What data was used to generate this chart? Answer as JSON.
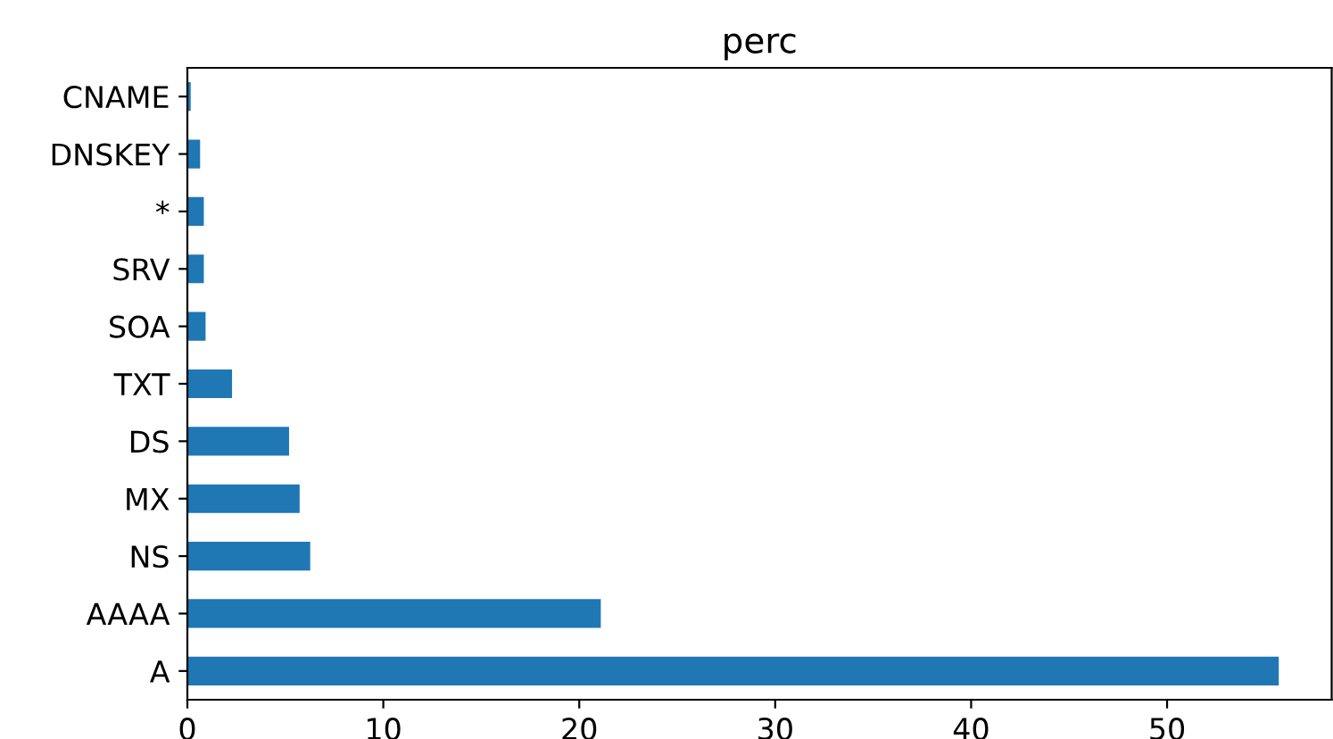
{
  "chart_data": {
    "type": "bar",
    "orientation": "horizontal",
    "title": "perc",
    "categories": [
      "CNAME",
      "DNSKEY",
      "*",
      "SRV",
      "SOA",
      "TXT",
      "DS",
      "MX",
      "NS",
      "AAAA",
      "A"
    ],
    "values": [
      0.17,
      0.65,
      0.84,
      0.84,
      0.93,
      2.28,
      5.19,
      5.73,
      6.27,
      21.1,
      55.7
    ],
    "color": "#1f77b4",
    "xlim": [
      0,
      58.4
    ],
    "xticks": [
      0,
      10,
      20,
      30,
      40,
      50
    ],
    "grid": false,
    "legend": false
  }
}
